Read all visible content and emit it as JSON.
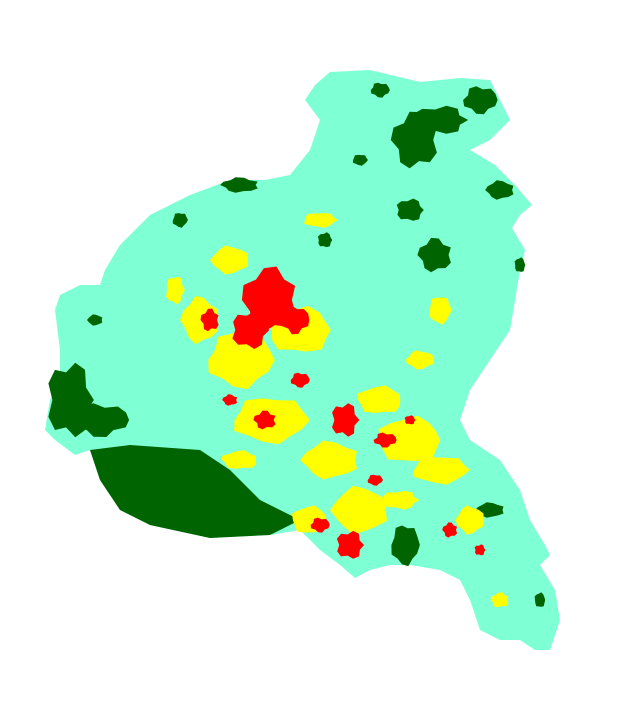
{
  "map": {
    "type": "classified-raster-map",
    "classes": [
      {
        "color": "#7FFFD4"
      },
      {
        "color": "#006400"
      },
      {
        "color": "#FFFF00"
      },
      {
        "color": "#FF0000"
      }
    ],
    "background": "#FFFFFF"
  }
}
